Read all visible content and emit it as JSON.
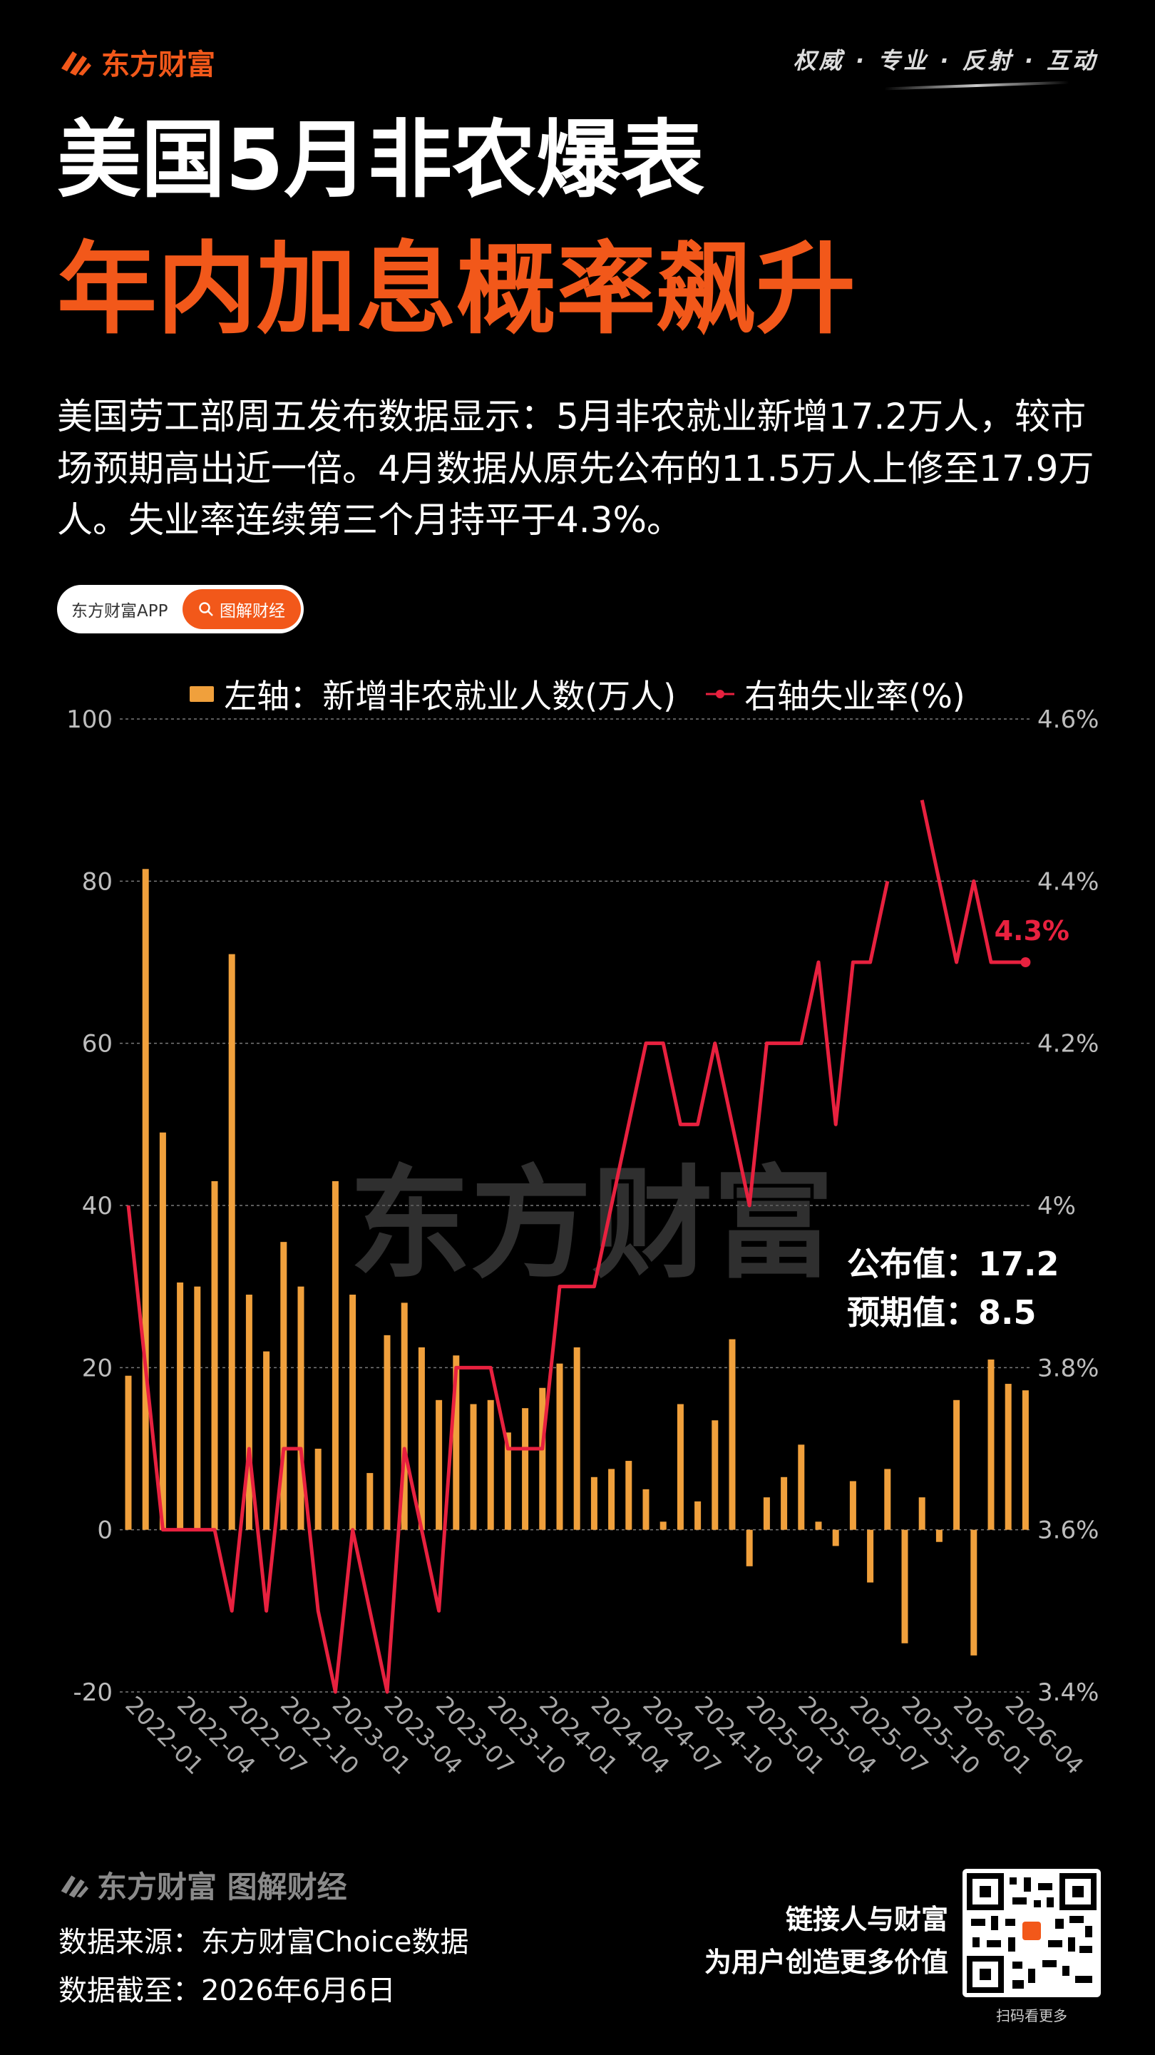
{
  "header": {
    "brand": "东方财富",
    "slogan": "权威 · 专业 · 反射 · 互动",
    "title_line1": "美国5月非农爆表",
    "title_line2": "年内加息概率飙升"
  },
  "intro": "美国劳工部周五发布数据显示：5月非农就业新增17.2万人，较市场预期高出近一倍。4月数据从原先公布的11.5万人上修至17.9万人。失业率连续第三个月持平于4.3%。",
  "pill": {
    "left": "东方财富APP",
    "right": "图解财经"
  },
  "chart_data": {
    "type": "bar",
    "legend": {
      "bar": "左轴：新增非农就业人数(万人)",
      "line": "右轴失业率(%)"
    },
    "left_axis": {
      "min": -20,
      "max": 100,
      "ticks": [
        "100",
        "80",
        "60",
        "40",
        "20",
        "0",
        "-20"
      ]
    },
    "right_axis": {
      "min": 3.4,
      "max": 4.6,
      "ticks": [
        "4.6%",
        "4.4%",
        "4.2%",
        "4%",
        "3.8%",
        "3.6%",
        "3.4%"
      ]
    },
    "x_tick_labels": [
      "2022-01",
      "2022-04",
      "2022-07",
      "2022-10",
      "2023-01",
      "2023-04",
      "2023-07",
      "2023-10",
      "2024-01",
      "2024-04",
      "2024-07",
      "2024-10",
      "2025-01",
      "2025-04",
      "2025-07",
      "2025-10",
      "2026-01",
      "2026-04"
    ],
    "bars": [
      19,
      81.5,
      49,
      30.5,
      30,
      43,
      71,
      29,
      22,
      35.5,
      30,
      10,
      43,
      29,
      7,
      24,
      28,
      22.5,
      16,
      21.5,
      15.5,
      16,
      12,
      15,
      17.5,
      20.5,
      22.5,
      6.5,
      7.5,
      8.5,
      5,
      1,
      15.5,
      3.5,
      13.5,
      23.5,
      -4.5,
      4,
      6.5,
      10.5,
      1,
      -2,
      6,
      -6.5,
      7.5,
      -14,
      4,
      -1.5,
      16,
      -15.5,
      21,
      18,
      17.2
    ],
    "unemployment": [
      4,
      3.8,
      3.6,
      3.6,
      3.6,
      3.6,
      3.5,
      3.7,
      3.5,
      3.7,
      3.7,
      3.5,
      3.4,
      3.6,
      3.5,
      3.4,
      3.7,
      3.6,
      3.5,
      3.8,
      3.8,
      3.8,
      3.7,
      3.7,
      3.7,
      3.9,
      3.9,
      3.9,
      4,
      4.1,
      4.2,
      4.2,
      4.1,
      4.1,
      4.2,
      4.1,
      4,
      4.2,
      4.2,
      4.2,
      4.3,
      4.1,
      4.3,
      4.3,
      4.4,
      null,
      4.5,
      4.4,
      4.3,
      4.4,
      4.3,
      4.3,
      4.3
    ],
    "line_label": "4.3%",
    "annotations": {
      "published": "公布值：17.2",
      "expected": "预期值：8.5"
    },
    "watermark": "东方财富",
    "colors": {
      "bar": "#f0a03c",
      "line": "#e8213f",
      "accent": "#f2581a"
    }
  },
  "footer": {
    "brand": "东方财富 图解财经",
    "source": "数据来源：东方财富Choice数据",
    "cutoff": "数据截至：2026年6月6日",
    "slogan_line1": "链接人与财富",
    "slogan_line2": "为用户创造更多价值",
    "qr_caption": "扫码看更多"
  }
}
